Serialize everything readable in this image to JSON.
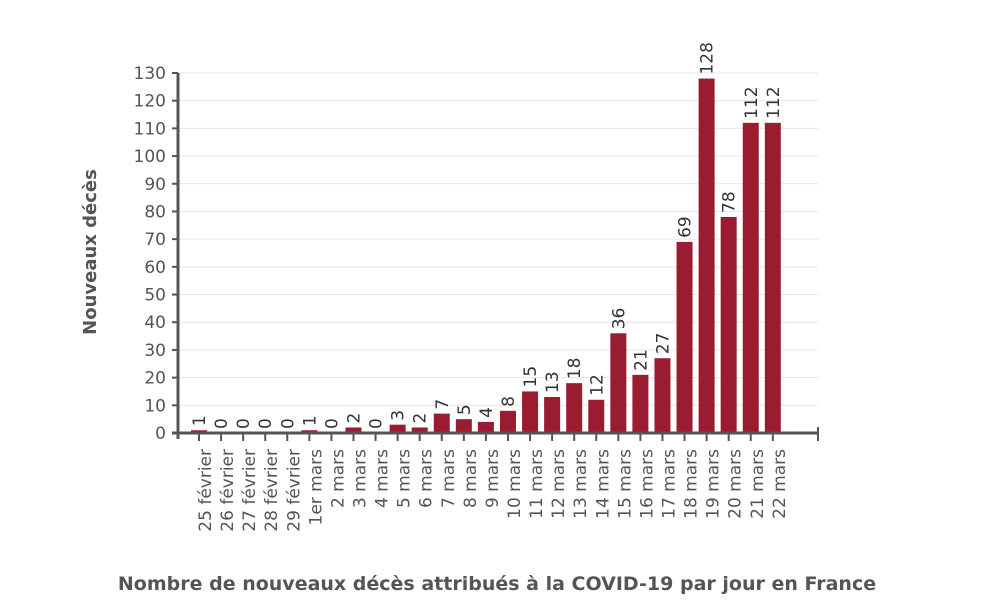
{
  "chart_data": {
    "type": "bar",
    "ylabel": "Nouveaux décès",
    "caption": "Nombre de nouveaux décès attribués à la COVID-19 par jour en France",
    "ylim": [
      0,
      130
    ],
    "yticks": [
      0,
      10,
      20,
      30,
      40,
      50,
      60,
      70,
      80,
      90,
      100,
      110,
      120,
      130
    ],
    "grid": true,
    "bar_color": "#9b1b30",
    "categories": [
      "25 février",
      "26 février",
      "27 février",
      "28 février",
      "29 février",
      "1er mars",
      "2 mars",
      "3 mars",
      "4 mars",
      "5 mars",
      "6 mars",
      "7 mars",
      "8 mars",
      "9 mars",
      "10 mars",
      "11 mars",
      "12 mars",
      "13 mars",
      "14 mars",
      "15 mars",
      "16 mars",
      "17 mars",
      "18 mars",
      "19 mars",
      "20 mars",
      "21 mars",
      "22 mars"
    ],
    "values": [
      1,
      0,
      0,
      0,
      0,
      1,
      0,
      2,
      0,
      3,
      2,
      7,
      5,
      4,
      8,
      15,
      13,
      18,
      12,
      36,
      21,
      27,
      69,
      128,
      78,
      112,
      112
    ]
  }
}
